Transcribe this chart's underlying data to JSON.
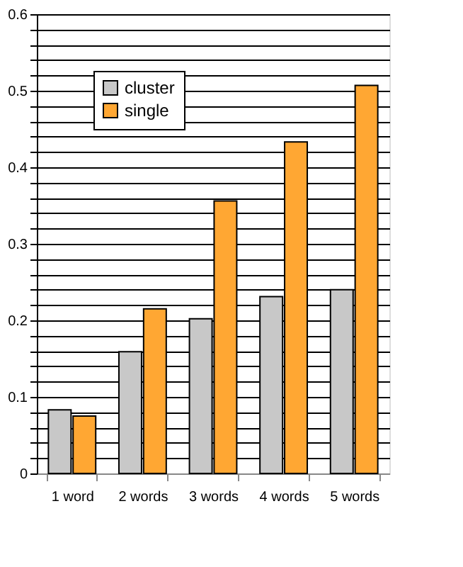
{
  "chart_data": {
    "type": "bar",
    "categories": [
      "1 word",
      "2 words",
      "3 words",
      "4 words",
      "5 words"
    ],
    "series": [
      {
        "name": "cluster",
        "color": "#c8c8c8",
        "values": [
          0.083,
          0.159,
          0.202,
          0.231,
          0.24
        ]
      },
      {
        "name": "single",
        "color": "#ffa733",
        "values": [
          0.075,
          0.215,
          0.356,
          0.433,
          0.507
        ]
      }
    ],
    "ylim": [
      0,
      0.6
    ],
    "yticks": [
      0,
      {
        "value": 0.02,
        "label": null
      },
      {
        "value": 0.04,
        "label": null
      },
      {
        "value": 0.06,
        "label": null
      },
      {
        "value": 0.08,
        "label": null
      },
      0.1,
      {
        "value": 0.12,
        "label": null
      },
      {
        "value": 0.14,
        "label": null
      },
      {
        "value": 0.16,
        "label": null
      },
      {
        "value": 0.18,
        "label": null
      },
      0.2,
      {
        "value": 0.22,
        "label": null
      },
      {
        "value": 0.24,
        "label": null
      },
      {
        "value": 0.26,
        "label": null
      },
      {
        "value": 0.28,
        "label": null
      },
      0.3,
      {
        "value": 0.32,
        "label": null
      },
      {
        "value": 0.34,
        "label": null
      },
      {
        "value": 0.36,
        "label": null
      },
      {
        "value": 0.38,
        "label": null
      },
      0.4,
      {
        "value": 0.42,
        "label": null
      },
      {
        "value": 0.44,
        "label": null
      },
      {
        "value": 0.46,
        "label": null
      },
      {
        "value": 0.48,
        "label": null
      },
      0.5,
      {
        "value": 0.52,
        "label": null
      },
      {
        "value": 0.54,
        "label": null
      },
      {
        "value": 0.56,
        "label": null
      },
      {
        "value": 0.58,
        "label": null
      },
      0.6
    ],
    "grid": "y",
    "legend": "top left"
  }
}
